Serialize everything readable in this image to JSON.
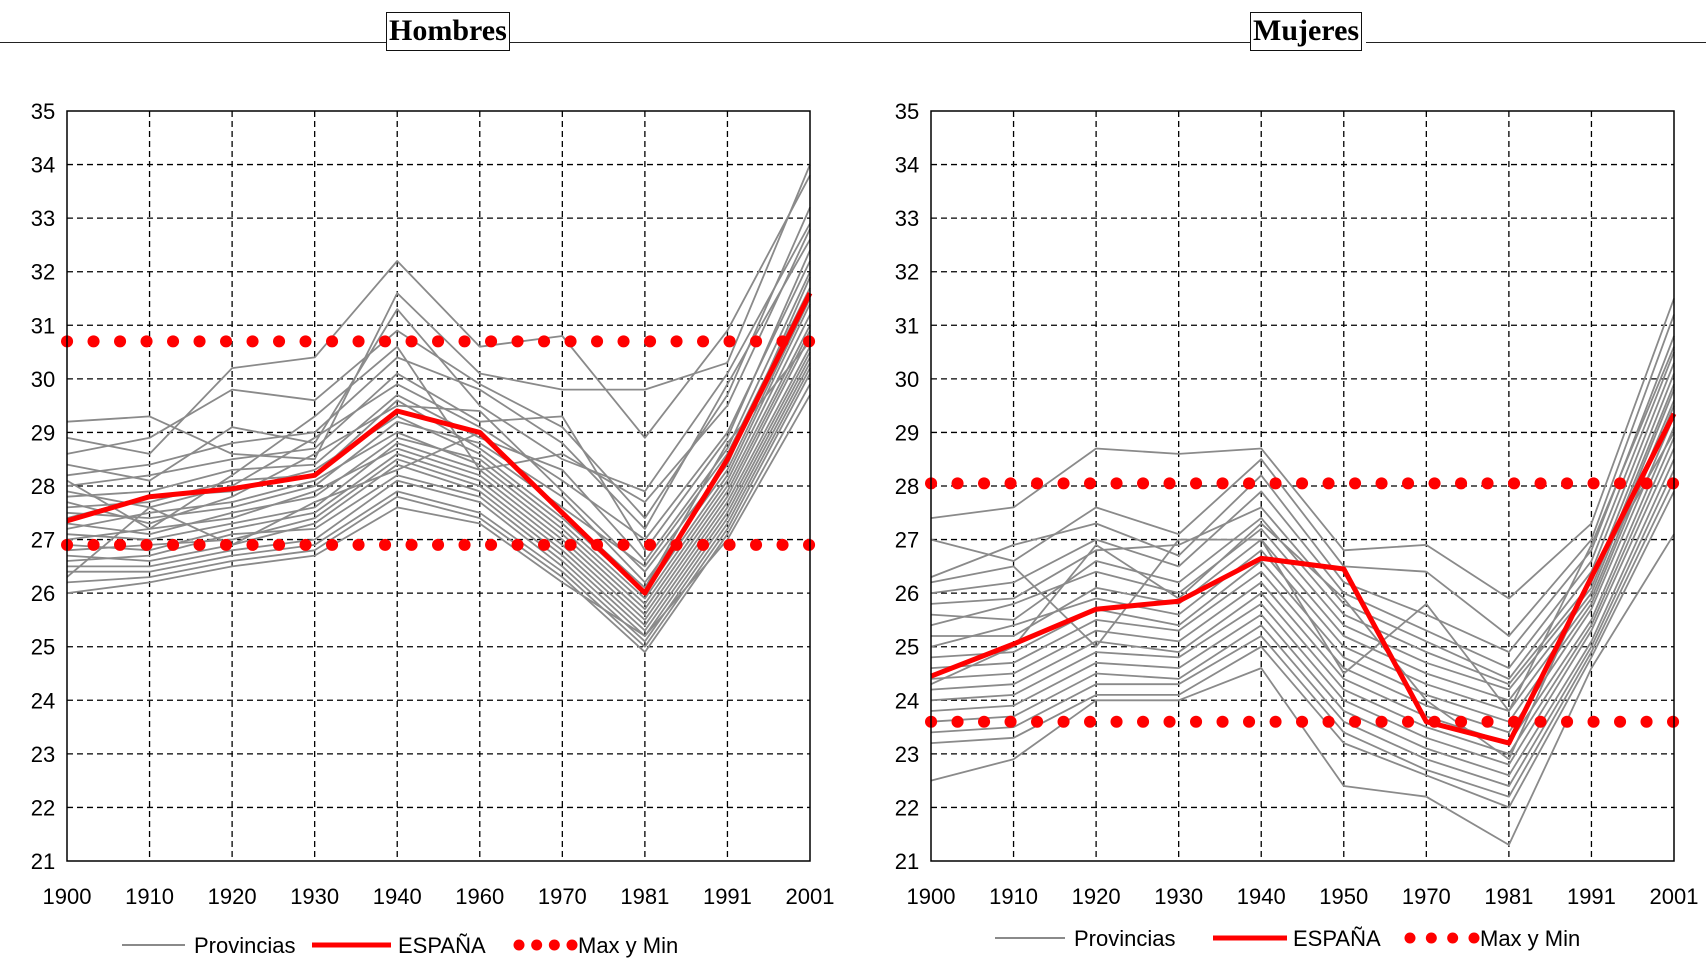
{
  "chart_data": [
    {
      "type": "line",
      "title": "Hombres",
      "categories": [
        "1900",
        "1910",
        "1920",
        "1930",
        "1940",
        "1960",
        "1970",
        "1981",
        "1991",
        "2001"
      ],
      "ylim": [
        21,
        35
      ],
      "yticks": [
        21,
        22,
        23,
        24,
        25,
        26,
        27,
        28,
        29,
        30,
        31,
        32,
        33,
        34,
        35
      ],
      "grid": true,
      "legend_position": "bottom",
      "legend": [
        "Provincias",
        "ESPAÑA",
        "Max y Min"
      ],
      "series": [
        {
          "name": "ESPAÑA",
          "values": [
            27.35,
            27.8,
            27.95,
            28.2,
            29.4,
            29.0,
            27.5,
            26.0,
            28.5,
            31.6
          ]
        },
        {
          "name": "Max y Min",
          "values": [
            30.7,
            30.7,
            30.7,
            30.7,
            30.7,
            30.7,
            30.7,
            30.7,
            30.7,
            30.7
          ]
        },
        {
          "name": "Max y Min",
          "values": [
            26.9,
            26.9,
            26.9,
            26.9,
            26.9,
            26.9,
            26.9,
            26.9,
            26.9,
            26.9
          ]
        },
        {
          "name": "Provincias",
          "values": [
            29.2,
            29.3,
            28.6,
            28.5,
            31.6,
            30.1,
            29.8,
            29.8,
            30.3,
            34.0
          ]
        },
        {
          "name": "Provincias",
          "values": [
            28.9,
            28.6,
            30.2,
            30.4,
            32.2,
            30.6,
            30.8,
            28.9,
            30.9,
            33.8
          ]
        },
        {
          "name": "Provincias",
          "values": [
            28.6,
            28.9,
            29.8,
            29.6,
            30.9,
            29.9,
            29.1,
            27.4,
            29.7,
            33.2
          ]
        },
        {
          "name": "Provincias",
          "values": [
            28.4,
            28.1,
            29.1,
            28.8,
            31.3,
            29.5,
            28.5,
            27.9,
            30.1,
            32.9
          ]
        },
        {
          "name": "Provincias",
          "values": [
            28.2,
            28.4,
            28.8,
            29.0,
            30.4,
            29.8,
            28.8,
            27.2,
            29.9,
            32.6
          ]
        },
        {
          "name": "Provincias",
          "values": [
            28.0,
            28.2,
            28.5,
            28.7,
            30.1,
            29.2,
            29.3,
            26.8,
            28.9,
            32.4
          ]
        },
        {
          "name": "Provincias",
          "values": [
            27.9,
            27.6,
            28.0,
            28.9,
            29.9,
            29.1,
            28.1,
            27.0,
            29.0,
            32.2
          ]
        },
        {
          "name": "Provincias",
          "values": [
            27.8,
            27.9,
            28.3,
            28.4,
            29.7,
            28.9,
            28.3,
            26.6,
            28.7,
            32.0
          ]
        },
        {
          "name": "Provincias",
          "values": [
            27.7,
            27.3,
            27.8,
            28.6,
            29.5,
            29.4,
            27.9,
            26.4,
            28.4,
            31.9
          ]
        },
        {
          "name": "Provincias",
          "values": [
            27.6,
            27.7,
            28.1,
            28.2,
            29.6,
            28.7,
            27.6,
            26.5,
            28.6,
            31.7
          ]
        },
        {
          "name": "Provincias",
          "values": [
            27.5,
            27.4,
            27.6,
            28.0,
            29.2,
            28.8,
            27.8,
            26.2,
            28.3,
            31.5
          ]
        },
        {
          "name": "Provincias",
          "values": [
            27.4,
            27.8,
            27.9,
            28.3,
            29.3,
            28.6,
            27.4,
            26.0,
            28.2,
            31.4
          ]
        },
        {
          "name": "Provincias",
          "values": [
            27.3,
            27.1,
            27.5,
            27.8,
            28.9,
            28.5,
            27.3,
            25.9,
            28.1,
            31.2
          ]
        },
        {
          "name": "Provincias",
          "values": [
            27.2,
            27.5,
            27.7,
            28.1,
            29.0,
            28.4,
            27.2,
            25.8,
            28.0,
            31.0
          ]
        },
        {
          "name": "Provincias",
          "values": [
            27.1,
            27.0,
            27.3,
            27.6,
            28.8,
            28.3,
            27.1,
            25.7,
            27.9,
            30.9
          ]
        },
        {
          "name": "Provincias",
          "values": [
            27.0,
            27.2,
            27.4,
            27.9,
            28.7,
            28.2,
            27.0,
            25.6,
            27.8,
            30.8
          ]
        },
        {
          "name": "Provincias",
          "values": [
            26.9,
            26.8,
            27.2,
            27.5,
            28.6,
            28.1,
            26.9,
            25.5,
            27.7,
            30.6
          ]
        },
        {
          "name": "Provincias",
          "values": [
            26.8,
            26.9,
            27.0,
            27.4,
            28.5,
            28.0,
            26.8,
            25.4,
            27.6,
            30.5
          ]
        },
        {
          "name": "Provincias",
          "values": [
            26.7,
            26.6,
            26.9,
            27.3,
            28.4,
            27.9,
            26.7,
            25.3,
            27.5,
            30.4
          ]
        },
        {
          "name": "Provincias",
          "values": [
            26.6,
            26.7,
            27.1,
            27.2,
            28.2,
            27.8,
            26.6,
            25.2,
            27.4,
            30.3
          ]
        },
        {
          "name": "Provincias",
          "values": [
            26.5,
            26.5,
            26.8,
            27.0,
            28.1,
            27.7,
            26.5,
            25.1,
            27.3,
            30.2
          ]
        },
        {
          "name": "Provincias",
          "values": [
            26.4,
            26.4,
            26.7,
            26.9,
            27.9,
            27.5,
            26.4,
            25.0,
            27.2,
            30.1
          ]
        },
        {
          "name": "Provincias",
          "values": [
            26.2,
            26.3,
            26.6,
            26.8,
            27.8,
            27.4,
            26.3,
            24.9,
            27.1,
            29.9
          ]
        },
        {
          "name": "Provincias",
          "values": [
            26.0,
            26.2,
            26.5,
            26.7,
            27.6,
            27.3,
            26.2,
            25.2,
            27.0,
            29.7
          ]
        },
        {
          "name": "Provincias",
          "values": [
            28.1,
            27.2,
            28.2,
            29.3,
            30.6,
            28.3,
            28.6,
            27.7,
            29.5,
            32.8
          ]
        },
        {
          "name": "Provincias",
          "values": [
            26.3,
            27.6,
            26.9,
            27.7,
            28.3,
            29.0,
            27.5,
            26.1,
            28.8,
            30.7
          ]
        }
      ]
    },
    {
      "type": "line",
      "title": "Mujeres",
      "categories": [
        "1900",
        "1910",
        "1920",
        "1930",
        "1940",
        "1950",
        "1970",
        "1981",
        "1991",
        "2001"
      ],
      "ylim": [
        21,
        35
      ],
      "yticks": [
        21,
        22,
        23,
        24,
        25,
        26,
        27,
        28,
        29,
        30,
        31,
        32,
        33,
        34,
        35
      ],
      "grid": true,
      "legend_position": "bottom",
      "legend": [
        "Provincias",
        "ESPAÑA",
        "Max y Min"
      ],
      "series": [
        {
          "name": "ESPAÑA",
          "values": [
            24.45,
            25.05,
            25.7,
            25.85,
            26.65,
            26.45,
            23.6,
            23.2,
            26.3,
            29.35
          ]
        },
        {
          "name": "Max y Min",
          "values": [
            28.05,
            28.05,
            28.05,
            28.05,
            28.05,
            28.05,
            28.05,
            28.05,
            28.05,
            28.05
          ]
        },
        {
          "name": "Max y Min",
          "values": [
            23.6,
            23.6,
            23.6,
            23.6,
            23.6,
            23.6,
            23.6,
            23.6,
            23.6,
            23.6
          ]
        },
        {
          "name": "Provincias",
          "values": [
            27.4,
            27.6,
            28.7,
            28.6,
            28.7,
            26.8,
            26.9,
            25.9,
            27.3,
            31.5
          ]
        },
        {
          "name": "Provincias",
          "values": [
            27.0,
            26.6,
            27.6,
            27.1,
            28.5,
            26.5,
            26.4,
            25.2,
            27.0,
            31.2
          ]
        },
        {
          "name": "Provincias",
          "values": [
            26.3,
            26.9,
            27.3,
            26.7,
            28.2,
            26.2,
            25.6,
            24.9,
            26.8,
            30.8
          ]
        },
        {
          "name": "Provincias",
          "values": [
            26.0,
            26.2,
            27.0,
            26.5,
            27.9,
            26.0,
            25.3,
            24.6,
            26.6,
            30.5
          ]
        },
        {
          "name": "Provincias",
          "values": [
            25.8,
            25.9,
            26.8,
            26.9,
            27.6,
            25.8,
            25.1,
            24.4,
            26.4,
            30.3
          ]
        },
        {
          "name": "Provincias",
          "values": [
            25.6,
            25.5,
            26.6,
            26.2,
            27.4,
            25.6,
            24.9,
            24.3,
            26.2,
            30.1
          ]
        },
        {
          "name": "Provincias",
          "values": [
            25.4,
            25.8,
            26.4,
            26.0,
            27.2,
            25.4,
            24.7,
            24.2,
            26.1,
            29.9
          ]
        },
        {
          "name": "Provincias",
          "values": [
            25.2,
            25.2,
            26.1,
            25.8,
            27.0,
            25.2,
            24.5,
            24.0,
            26.0,
            29.8
          ]
        },
        {
          "name": "Provincias",
          "values": [
            25.0,
            25.4,
            25.9,
            25.6,
            26.8,
            25.0,
            24.3,
            23.8,
            25.9,
            29.6
          ]
        },
        {
          "name": "Provincias",
          "values": [
            24.8,
            24.9,
            25.7,
            25.4,
            26.6,
            24.8,
            24.1,
            23.6,
            25.8,
            29.5
          ]
        },
        {
          "name": "Provincias",
          "values": [
            24.6,
            24.7,
            25.5,
            25.3,
            26.4,
            24.6,
            23.9,
            23.4,
            25.7,
            29.3
          ]
        },
        {
          "name": "Provincias",
          "values": [
            24.4,
            24.5,
            25.3,
            25.1,
            26.2,
            24.4,
            23.7,
            23.2,
            25.5,
            29.1
          ]
        },
        {
          "name": "Provincias",
          "values": [
            24.2,
            24.3,
            25.1,
            24.9,
            26.0,
            24.2,
            23.5,
            23.0,
            25.4,
            28.9
          ]
        },
        {
          "name": "Provincias",
          "values": [
            24.0,
            24.1,
            24.9,
            24.8,
            25.8,
            24.0,
            23.3,
            22.8,
            25.3,
            28.7
          ]
        },
        {
          "name": "Provincias",
          "values": [
            23.8,
            23.9,
            24.7,
            24.6,
            25.6,
            23.8,
            23.1,
            22.6,
            25.1,
            28.5
          ]
        },
        {
          "name": "Provincias",
          "values": [
            23.6,
            23.7,
            24.5,
            24.4,
            25.4,
            23.6,
            22.9,
            22.4,
            25.0,
            28.3
          ]
        },
        {
          "name": "Provincias",
          "values": [
            23.4,
            23.5,
            24.3,
            24.3,
            25.2,
            23.4,
            22.7,
            22.2,
            24.9,
            28.1
          ]
        },
        {
          "name": "Provincias",
          "values": [
            23.2,
            23.3,
            24.1,
            24.1,
            25.0,
            23.2,
            22.6,
            22.0,
            24.8,
            27.9
          ]
        },
        {
          "name": "Provincias",
          "values": [
            22.5,
            22.9,
            24.0,
            24.0,
            24.6,
            22.4,
            22.2,
            21.3,
            24.6,
            27.1
          ]
        },
        {
          "name": "Provincias",
          "values": [
            26.2,
            26.5,
            25.0,
            27.0,
            27.0,
            24.5,
            25.8,
            23.8,
            26.9,
            30.6
          ]
        },
        {
          "name": "Provincias",
          "values": [
            24.3,
            25.0,
            26.9,
            25.9,
            27.3,
            25.9,
            24.0,
            22.9,
            26.3,
            29.0
          ]
        }
      ]
    }
  ]
}
